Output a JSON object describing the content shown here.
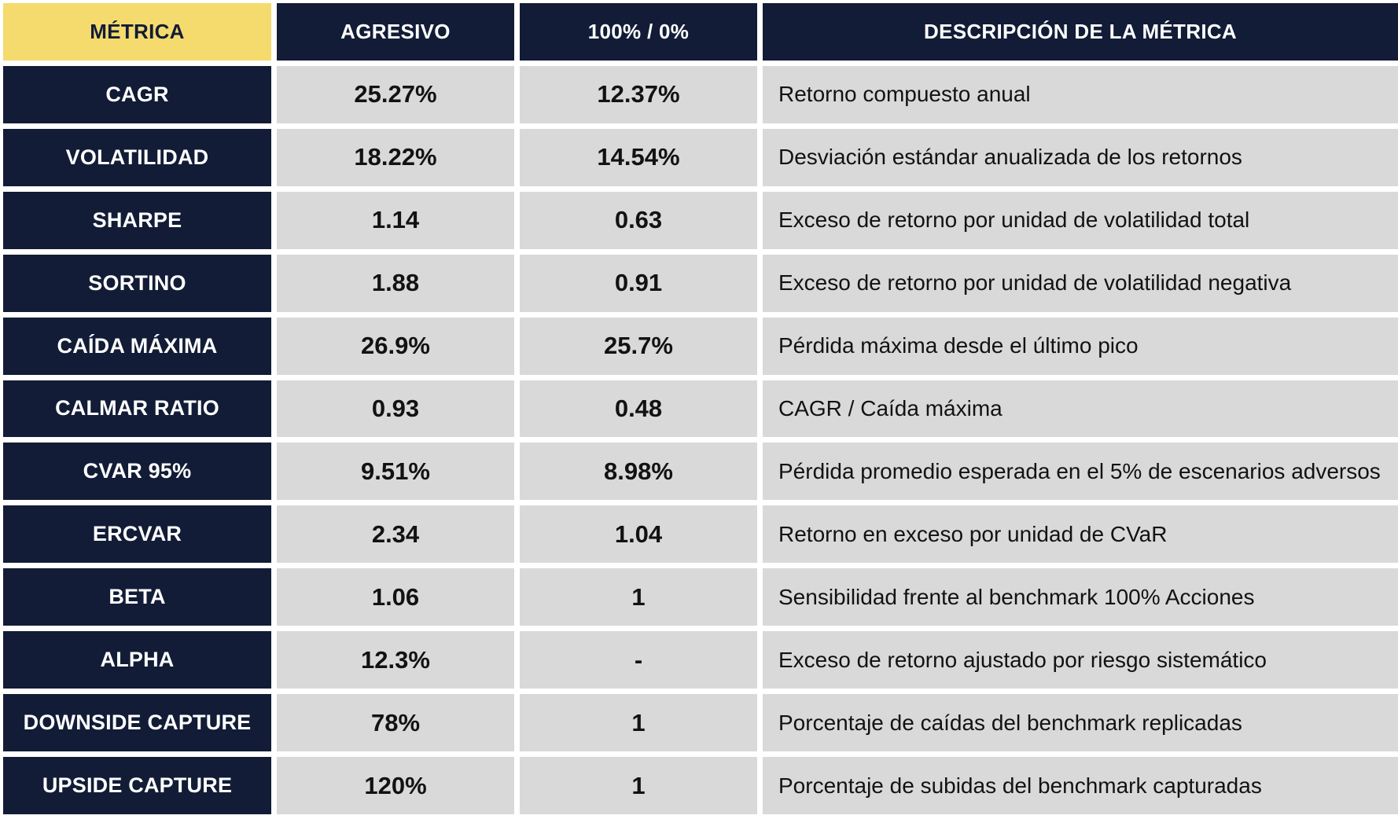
{
  "chart_data": {
    "type": "table",
    "columns": [
      "MÉTRICA",
      "AGRESIVO",
      "100% / 0%",
      "DESCRIPCIÓN DE LA MÉTRICA"
    ],
    "rows": [
      [
        "CAGR",
        "25.27%",
        "12.37%",
        "Retorno compuesto anual"
      ],
      [
        "VOLATILIDAD",
        "18.22%",
        "14.54%",
        "Desviación estándar anualizada de los retornos"
      ],
      [
        "SHARPE",
        "1.14",
        "0.63",
        "Exceso de retorno por unidad de volatilidad total"
      ],
      [
        "SORTINO",
        "1.88",
        "0.91",
        "Exceso de retorno por unidad de volatilidad negativa"
      ],
      [
        "CAÍDA MÁXIMA",
        "26.9%",
        "25.7%",
        "Pérdida máxima desde el último pico"
      ],
      [
        "CALMAR RATIO",
        "0.93",
        "0.48",
        "CAGR / Caída máxima"
      ],
      [
        "CVAR 95%",
        "9.51%",
        "8.98%",
        "Pérdida promedio esperada en el 5% de escenarios adversos"
      ],
      [
        "ERCVAR",
        "2.34",
        "1.04",
        "Retorno en exceso por unidad de CVaR"
      ],
      [
        "BETA",
        "1.06",
        "1",
        "Sensibilidad frente al benchmark 100% Acciones"
      ],
      [
        "ALPHA",
        "12.3%",
        "-",
        "Exceso de retorno ajustado por riesgo sistemático"
      ],
      [
        "DOWNSIDE CAPTURE",
        "78%",
        "1",
        "Porcentaje de caídas del benchmark replicadas"
      ],
      [
        "UPSIDE CAPTURE",
        "120%",
        "1",
        "Porcentaje de subidas del benchmark capturadas"
      ]
    ],
    "layout": {
      "header_row": true,
      "grid_lines": "white-gaps",
      "legend_position": "none"
    }
  },
  "colors": {
    "navy": "#121C36",
    "yellow": "#F5DB6D",
    "gray": "#D9D9D9",
    "white": "#FFFFFF",
    "ink": "#121212"
  }
}
